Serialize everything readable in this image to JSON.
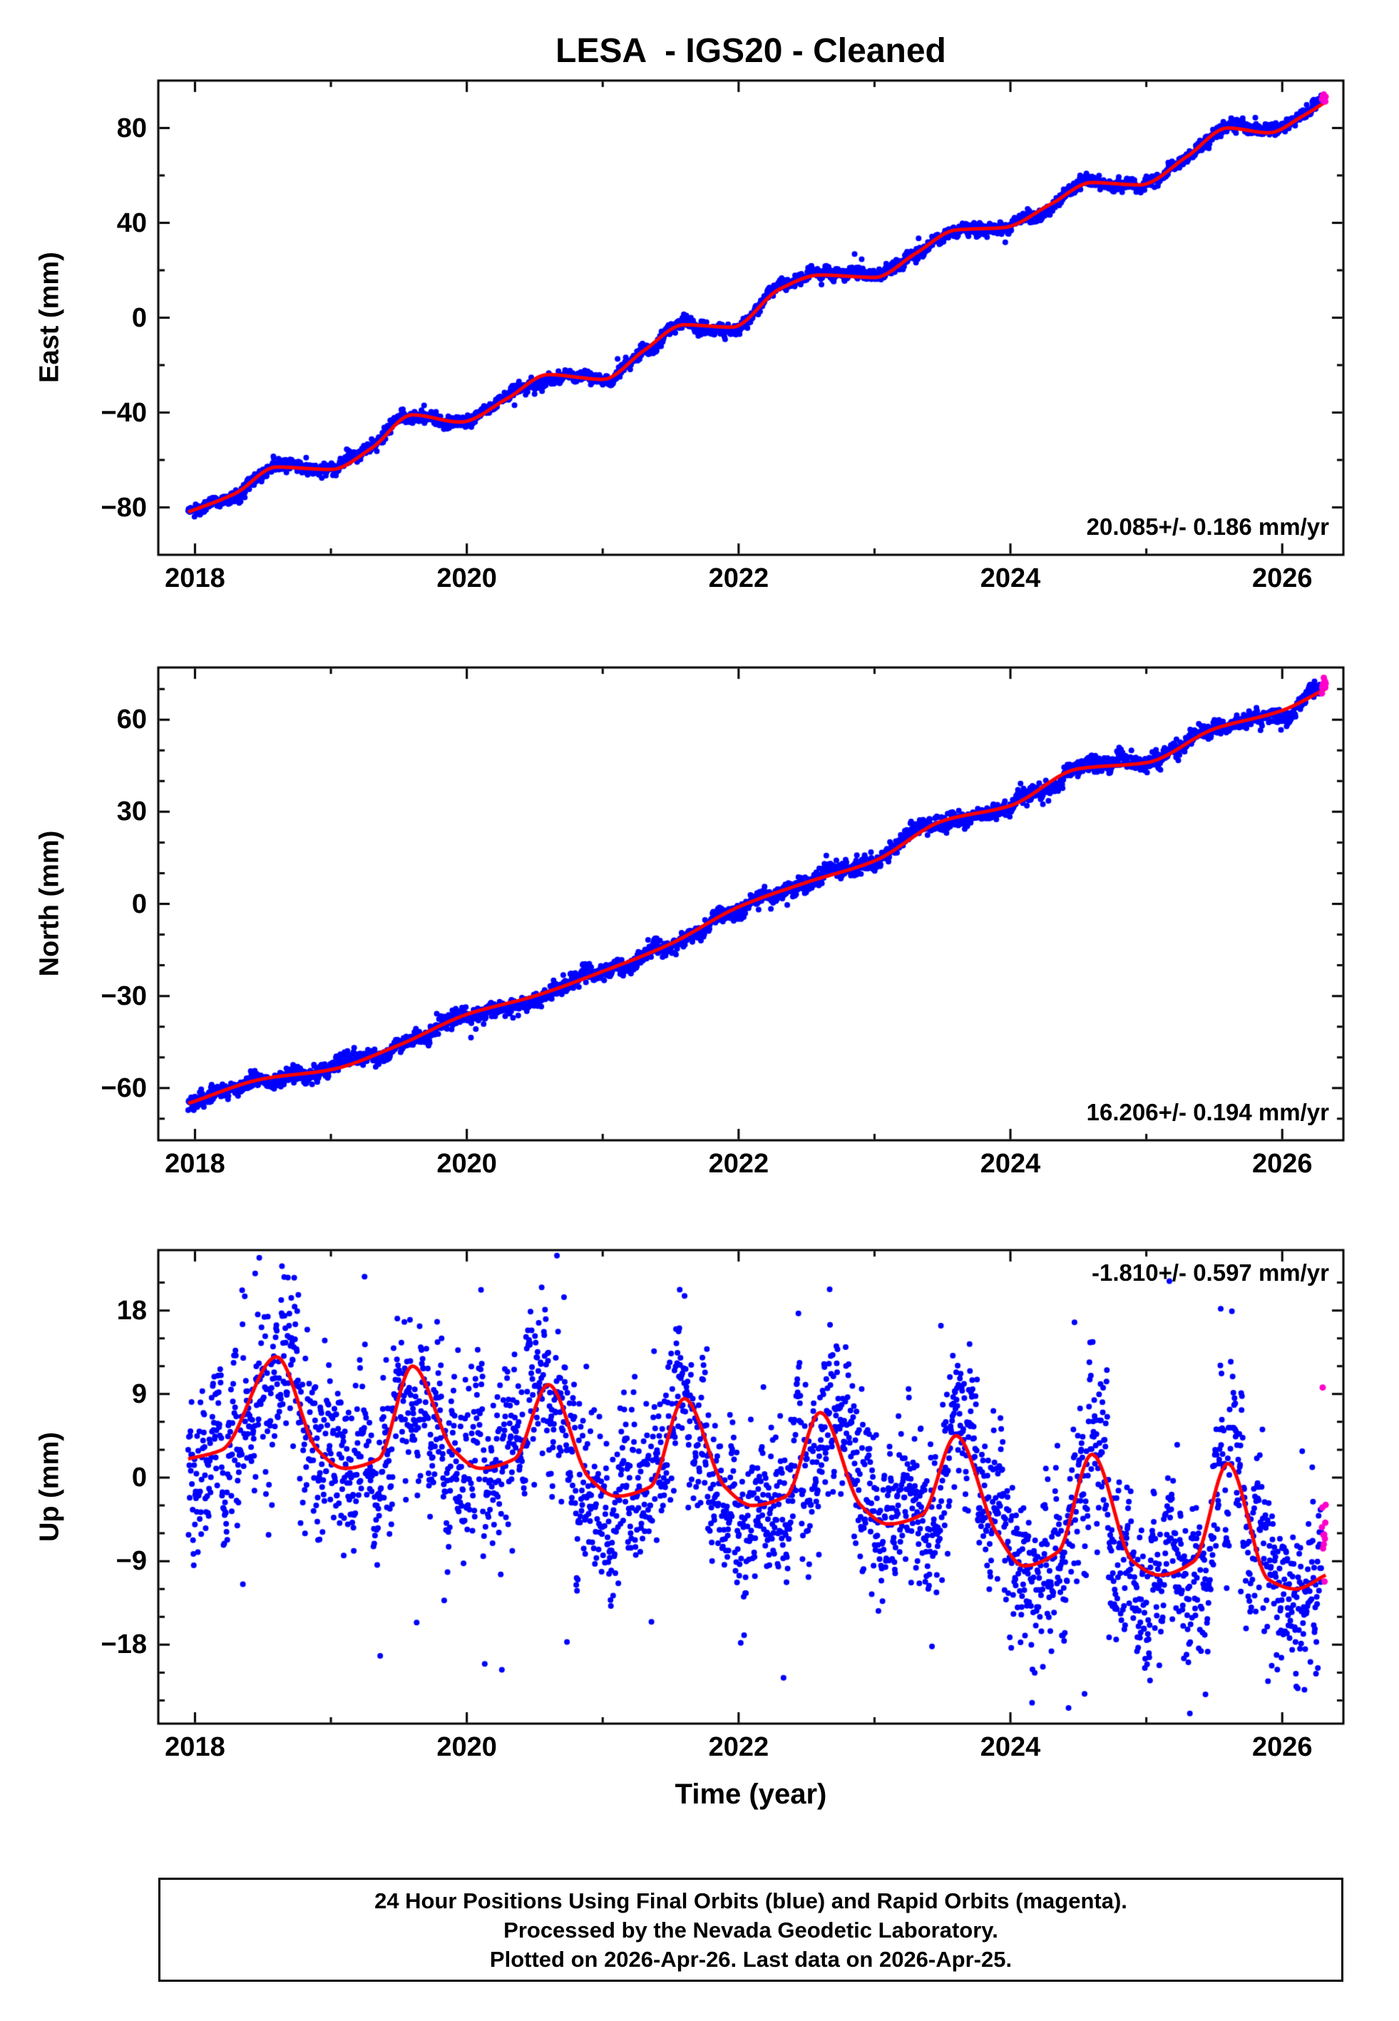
{
  "title": "LESA  - IGS20 - Cleaned",
  "colors": {
    "final_blue": "#0000ff",
    "rapid_magenta": "#ff00cc",
    "model_red": "#ff0000",
    "frame_black": "#000000",
    "background": "#ffffff"
  },
  "axis": {
    "xlabel": "Time (year)",
    "x_tick_labels": [
      2018,
      2020,
      2022,
      2024,
      2026
    ],
    "x_minor_tick_every_years": 1,
    "x_range": [
      2017.73,
      2026.45
    ]
  },
  "chart_data": [
    {
      "type": "scatter",
      "component": "East",
      "ylabel": "East (mm)",
      "ylim": [
        -100,
        100
      ],
      "y_ticks": [
        -80,
        -40,
        0,
        40,
        80
      ],
      "y_minor_step": 20,
      "annotation": "20.085+/- 0.186 mm/yr",
      "annotation_corner": "bottom-right",
      "rate_mm_per_yr": 20.085,
      "rate_uncertainty_mm_per_yr": 0.186,
      "t_start": 2017.95,
      "t_end": 2026.32,
      "rapid_start": 2026.29,
      "scatter_sigma_mm": 1.2,
      "corr_a": 0.97,
      "corr_b": 0.3,
      "outlier_frac": 0.012,
      "curve_samples": {
        "t": [
          2017.95,
          2018.3,
          2018.6,
          2019.0,
          2019.3,
          2019.6,
          2019.95,
          2020.3,
          2020.6,
          2021.0,
          2021.3,
          2021.6,
          2021.95,
          2022.3,
          2022.6,
          2023.0,
          2023.3,
          2023.6,
          2023.95,
          2024.3,
          2024.6,
          2024.95,
          2025.3,
          2025.6,
          2025.9,
          2026.15,
          2026.32
        ],
        "v": [
          -82,
          -74,
          -63,
          -64,
          -55,
          -41,
          -44,
          -34,
          -24,
          -26,
          -14,
          -3,
          -4,
          12,
          18,
          17,
          27,
          37,
          38,
          48,
          57,
          56,
          68,
          80,
          78,
          85,
          91
        ]
      }
    },
    {
      "type": "scatter",
      "component": "North",
      "ylabel": "North (mm)",
      "ylim": [
        -77,
        77
      ],
      "y_ticks": [
        -60,
        -30,
        0,
        30,
        60
      ],
      "y_minor_step": 10,
      "annotation": "16.206+/- 0.194 mm/yr",
      "annotation_corner": "bottom-right",
      "rate_mm_per_yr": 16.206,
      "rate_uncertainty_mm_per_yr": 0.194,
      "t_start": 2017.95,
      "t_end": 2026.32,
      "rapid_start": 2026.29,
      "scatter_sigma_mm": 1.2,
      "corr_a": 0.97,
      "corr_b": 0.3,
      "outlier_frac": 0.012,
      "curve_samples": {
        "t": [
          2017.95,
          2018.5,
          2019.0,
          2019.5,
          2020.0,
          2020.5,
          2021.0,
          2021.5,
          2022.0,
          2022.5,
          2023.0,
          2023.5,
          2024.0,
          2024.5,
          2025.0,
          2025.5,
          2026.0,
          2026.32
        ],
        "v": [
          -65,
          -57,
          -54,
          -46,
          -36,
          -30,
          -22,
          -13,
          -1,
          7,
          14,
          27,
          32,
          44,
          46,
          57,
          63,
          70
        ]
      }
    },
    {
      "type": "scatter",
      "component": "Up",
      "ylabel": "Up (mm)",
      "ylim": [
        -26.5,
        24.5
      ],
      "y_ticks": [
        -18,
        -9,
        0,
        9,
        18
      ],
      "y_minor_step": 3,
      "annotation": "-1.810+/- 0.597 mm/yr",
      "annotation_corner": "top-right",
      "rate_mm_per_yr": -1.81,
      "rate_uncertainty_mm_per_yr": 0.597,
      "t_start": 2017.95,
      "t_end": 2026.32,
      "rapid_start": 2026.29,
      "scatter_sigma_mm": 3.8,
      "corr_a": 0.9,
      "corr_b": 1.4,
      "outlier_frac": 0.06,
      "curve_samples": {
        "t": [
          2017.95,
          2018.2,
          2018.6,
          2018.9,
          2019.1,
          2019.35,
          2019.6,
          2019.9,
          2020.1,
          2020.35,
          2020.6,
          2020.9,
          2021.1,
          2021.35,
          2021.6,
          2021.9,
          2022.1,
          2022.35,
          2022.6,
          2022.9,
          2023.1,
          2023.35,
          2023.6,
          2023.9,
          2024.1,
          2024.35,
          2024.6,
          2024.9,
          2025.1,
          2025.35,
          2025.6,
          2025.9,
          2026.1,
          2026.32
        ],
        "v": [
          2,
          3,
          13,
          3,
          1,
          2,
          12,
          3,
          1,
          2,
          10,
          0,
          -2,
          -1,
          8.5,
          -1,
          -3,
          -2,
          7,
          -3,
          -5,
          -4,
          4.5,
          -6,
          -9.5,
          -8,
          2.5,
          -9,
          -10.5,
          -9,
          1.5,
          -11,
          -12,
          -10.5
        ]
      }
    }
  ],
  "legend": {
    "final_series": "Final Orbits (blue)",
    "rapid_series": "Rapid Orbits (magenta)"
  },
  "footer": {
    "lines": [
      "24 Hour Positions Using Final Orbits (blue) and Rapid Orbits (magenta).",
      "Processed by the Nevada Geodetic Laboratory.",
      "Plotted on 2026-Apr-26. Last data on 2026-Apr-25."
    ]
  }
}
